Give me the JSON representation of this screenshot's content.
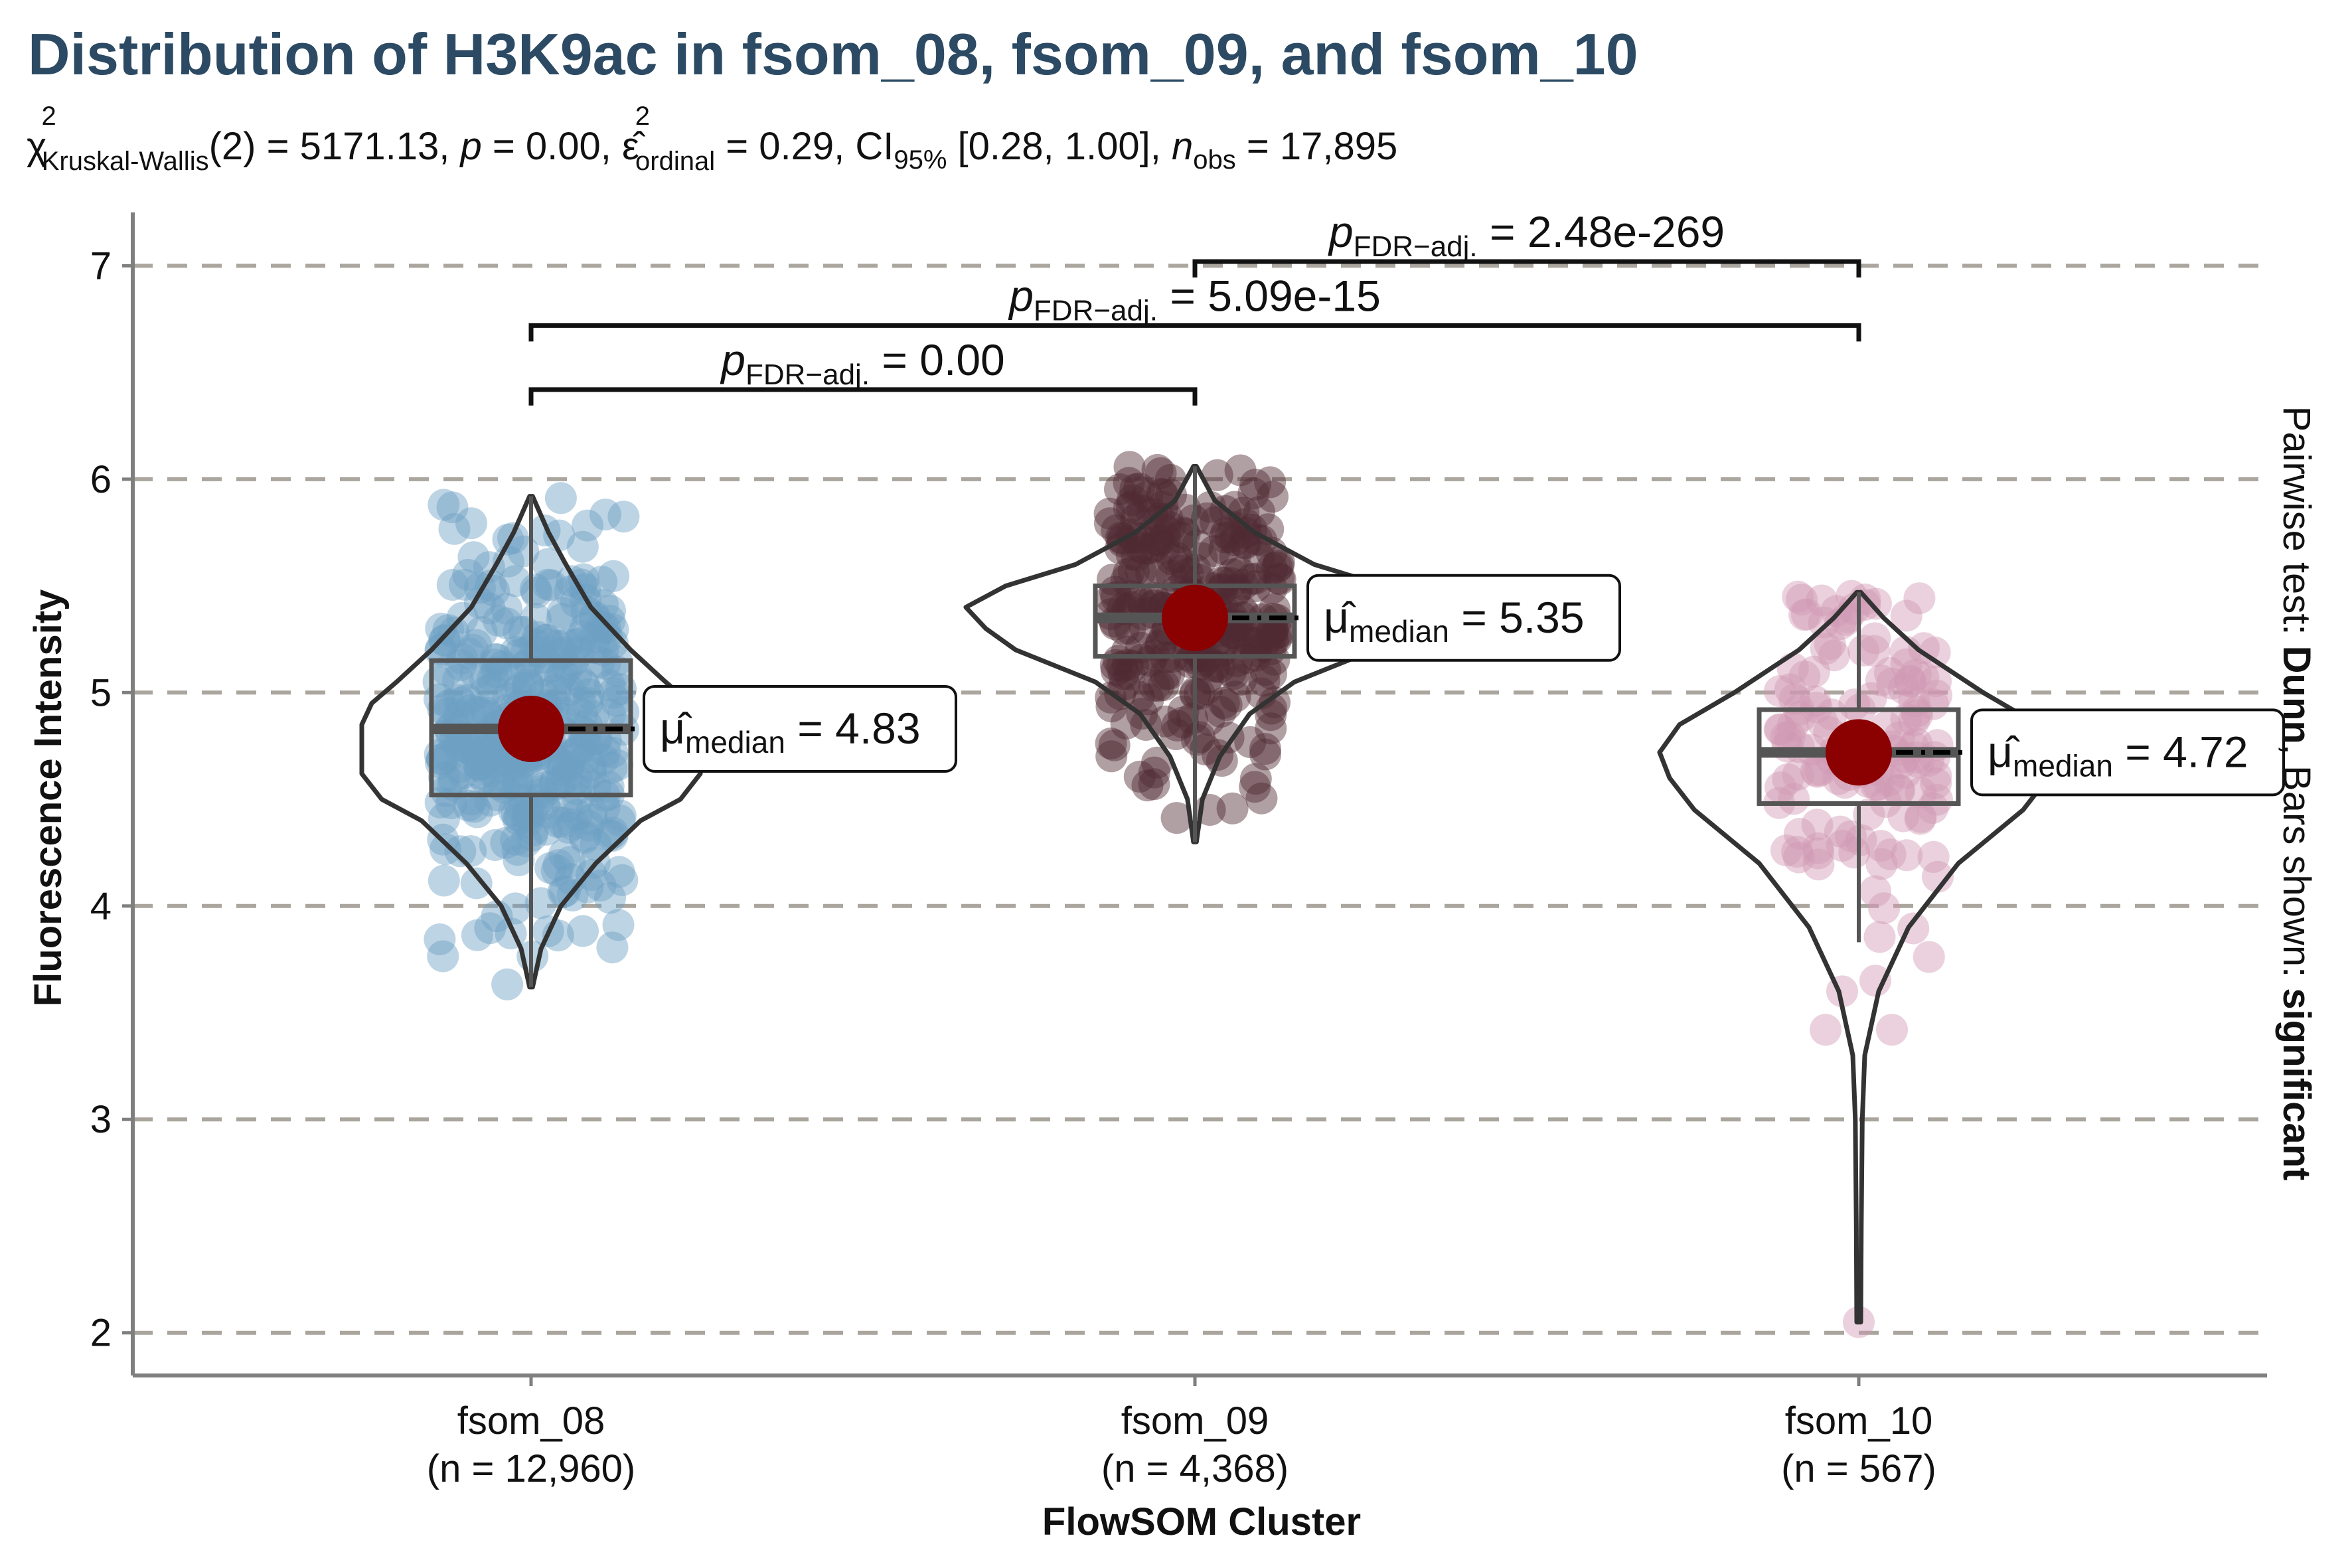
{
  "chart_data": {
    "type": "violin-box",
    "title": "Distribution of H3K9ac in fsom_08, fsom_09, and fsom_10",
    "subtitle": {
      "chi_symbol": "χ",
      "chi_sup": "2",
      "chi_sub": "Kruskal-Wallis",
      "chi_value": "(2) = 5171.13, ",
      "p_symbol": "p",
      "p_value": " = 0.00, ",
      "eps_symbol": "ε̂",
      "eps_sup": "2",
      "eps_sub": "ordinal",
      "eps_value": " = 0.29, CI",
      "ci_sub": "95%",
      "ci_value": " [0.28, 1.00], ",
      "n_symbol": "n",
      "n_sub": "obs",
      "n_value": " = 17,895"
    },
    "xlabel": "FlowSOM Cluster",
    "ylabel": "Fluorescence Intensity",
    "ylim": [
      1.8,
      7.25
    ],
    "yticks": [
      2,
      3,
      4,
      5,
      6,
      7
    ],
    "grid": "dashed-horizontal",
    "side_text": {
      "prefix": "Pairwise test: ",
      "test": "Dunn",
      "middle": ", Bars shown: ",
      "shown": "significant"
    },
    "groups": [
      {
        "name": "fsom_08",
        "n_label": "(n = 12,960)",
        "color": "#6c9fc3",
        "q1": 4.52,
        "median": 4.83,
        "q3": 5.15,
        "whisker_low": 3.62,
        "whisker_high": 5.92,
        "violin": [
          [
            3.62,
            0.003
          ],
          [
            3.8,
            0.02
          ],
          [
            4.0,
            0.06
          ],
          [
            4.2,
            0.13
          ],
          [
            4.4,
            0.22
          ],
          [
            4.5,
            0.3
          ],
          [
            4.62,
            0.34
          ],
          [
            4.75,
            0.34
          ],
          [
            4.85,
            0.34
          ],
          [
            4.95,
            0.32
          ],
          [
            5.05,
            0.27
          ],
          [
            5.2,
            0.2
          ],
          [
            5.4,
            0.12
          ],
          [
            5.6,
            0.07
          ],
          [
            5.75,
            0.035
          ],
          [
            5.92,
            0.003
          ]
        ],
        "jitter_low": 3.62,
        "jitter_high": 5.93,
        "jitter_width": 0.28,
        "jitter_count": 380,
        "median_label_symbol": "μ̂",
        "median_label_sub": "median",
        "median_label_value": " = 4.83"
      },
      {
        "name": "fsom_09",
        "n_label": "(n = 4,368)",
        "color": "#4f2a33",
        "q1": 5.17,
        "median": 5.35,
        "q3": 5.5,
        "whisker_low": 4.3,
        "whisker_high": 6.06,
        "violin": [
          [
            4.3,
            0.003
          ],
          [
            4.5,
            0.015
          ],
          [
            4.7,
            0.05
          ],
          [
            4.9,
            0.11
          ],
          [
            5.05,
            0.2
          ],
          [
            5.2,
            0.36
          ],
          [
            5.3,
            0.42
          ],
          [
            5.4,
            0.46
          ],
          [
            5.5,
            0.38
          ],
          [
            5.6,
            0.24
          ],
          [
            5.75,
            0.12
          ],
          [
            5.9,
            0.04
          ],
          [
            6.06,
            0.003
          ]
        ],
        "jitter_low": 4.3,
        "jitter_high": 6.07,
        "jitter_width": 0.26,
        "jitter_count": 300,
        "median_label_symbol": "μ̂",
        "median_label_sub": "median",
        "median_label_value": " = 5.35"
      },
      {
        "name": "fsom_10",
        "n_label": "(n = 567)",
        "color": "#d19ab3",
        "q1": 4.48,
        "median": 4.72,
        "q3": 4.92,
        "whisker_low": 3.83,
        "whisker_high": 5.47,
        "violin": [
          [
            2.05,
            0.004
          ],
          [
            2.5,
            0.005
          ],
          [
            3.0,
            0.007
          ],
          [
            3.3,
            0.012
          ],
          [
            3.6,
            0.04
          ],
          [
            3.9,
            0.1
          ],
          [
            4.2,
            0.2
          ],
          [
            4.45,
            0.33
          ],
          [
            4.6,
            0.38
          ],
          [
            4.72,
            0.4
          ],
          [
            4.85,
            0.36
          ],
          [
            5.0,
            0.25
          ],
          [
            5.2,
            0.12
          ],
          [
            5.35,
            0.05
          ],
          [
            5.47,
            0.004
          ]
        ],
        "jitter_low": 3.4,
        "jitter_high": 5.47,
        "jitter_width": 0.24,
        "jitter_count": 140,
        "outliers": [
          [
            1.0,
            2.05
          ],
          [
            0.9,
            3.42
          ],
          [
            1.1,
            3.42
          ],
          [
            0.95,
            3.6
          ],
          [
            1.05,
            3.65
          ]
        ],
        "median_label_symbol": "μ̂",
        "median_label_sub": "median",
        "median_label_value": " = 4.72"
      }
    ],
    "comparisons": [
      {
        "from": 0,
        "to": 1,
        "y": 6.42,
        "symbol": "p",
        "sub": "FDR−adj.",
        "value": " = 0.00"
      },
      {
        "from": 0,
        "to": 2,
        "y": 6.72,
        "symbol": "p",
        "sub": "FDR−adj.",
        "value": " = 5.09e-15"
      },
      {
        "from": 1,
        "to": 2,
        "y": 7.02,
        "symbol": "p",
        "sub": "FDR−adj.",
        "value": " = 2.48e-269"
      }
    ],
    "mean_point_color": "#8b0000"
  }
}
